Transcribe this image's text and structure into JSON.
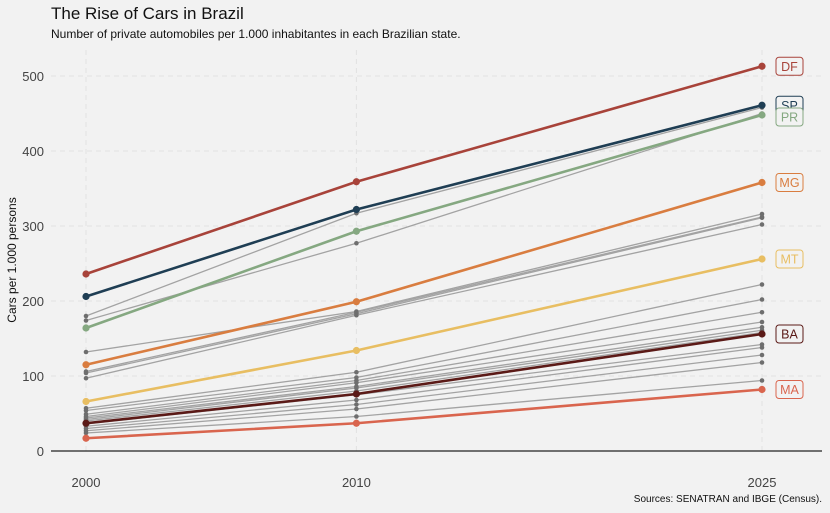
{
  "chart_data": {
    "type": "line",
    "title": "The Rise of Cars in Brazil",
    "subtitle": "Number of private automobiles per 1.000 inhabitantes in each Brazilian state.",
    "caption": "Sources: SENATRAN and IBGE (Census).",
    "xlabel": "",
    "ylabel": "Cars per 1.000 persons",
    "x": [
      2000,
      2010,
      2025
    ],
    "x_ticks": [
      "2000",
      "2010",
      "2025"
    ],
    "ylim": [
      0,
      540
    ],
    "y_ticks": [
      0,
      100,
      200,
      300,
      400,
      500
    ],
    "grid": true,
    "highlighted": [
      {
        "name": "DF",
        "color": "#a8433a",
        "values": [
          236,
          359,
          513
        ]
      },
      {
        "name": "SP",
        "color": "#1f3e54",
        "values": [
          206,
          322,
          461
        ]
      },
      {
        "name": "PR",
        "color": "#85a881",
        "values": [
          164,
          293,
          448
        ]
      },
      {
        "name": "MG",
        "color": "#d97d40",
        "values": [
          115,
          199,
          358
        ]
      },
      {
        "name": "MT",
        "color": "#e8be62",
        "values": [
          66,
          134,
          256
        ]
      },
      {
        "name": "BA",
        "color": "#5b1a17",
        "values": [
          37,
          76,
          156
        ]
      },
      {
        "name": "MA",
        "color": "#d9654e",
        "values": [
          17,
          37,
          82
        ]
      }
    ],
    "others": [
      {
        "values": [
          180,
          317,
          458
        ]
      },
      {
        "values": [
          174,
          277,
          450
        ]
      },
      {
        "values": [
          132,
          186,
          316
        ]
      },
      {
        "values": [
          106,
          185,
          312
        ]
      },
      {
        "values": [
          104,
          183,
          311
        ]
      },
      {
        "values": [
          97,
          181,
          302
        ]
      },
      {
        "values": [
          57,
          105,
          222
        ]
      },
      {
        "values": [
          54,
          98,
          202
        ]
      },
      {
        "values": [
          49,
          94,
          185
        ]
      },
      {
        "values": [
          46,
          91,
          172
        ]
      },
      {
        "values": [
          44,
          86,
          165
        ]
      },
      {
        "values": [
          42,
          84,
          161
        ]
      },
      {
        "values": [
          40,
          80,
          158
        ]
      },
      {
        "values": [
          36,
          75,
          142
        ]
      },
      {
        "values": [
          33,
          68,
          138
        ]
      },
      {
        "values": [
          30,
          62,
          128
        ]
      },
      {
        "values": [
          27,
          56,
          118
        ]
      },
      {
        "values": [
          24,
          46,
          94
        ]
      }
    ]
  }
}
